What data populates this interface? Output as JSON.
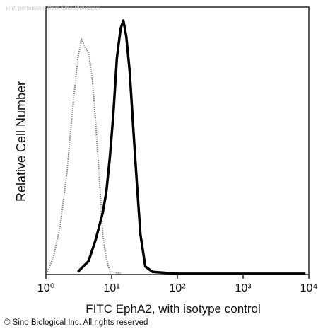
{
  "chart_data": {
    "type": "line",
    "watermark": "with permission from Sino Biological",
    "xlabel": "FITC EphA2, with isotype control",
    "ylabel": "Relative Cell Number",
    "footer": "© Sino Biological Inc. All rights reserved",
    "xscale": "log",
    "xlim": [
      1,
      10000
    ],
    "ylim": [
      0,
      100
    ],
    "xticks": [
      {
        "value": 1,
        "label": "10⁰"
      },
      {
        "value": 10,
        "label": "10¹"
      },
      {
        "value": 100,
        "label": "10²"
      },
      {
        "value": 1000,
        "label": "10³"
      },
      {
        "value": 10000,
        "label": "10⁴"
      }
    ],
    "series": [
      {
        "color": "#888888",
        "style": "dotted",
        "x": [
          1.05,
          1.28,
          1.65,
          2.1,
          2.4,
          2.7,
          3.06,
          3.47,
          3.93,
          4.45,
          5.05,
          5.7,
          6.5,
          7.3,
          8.3,
          9.4,
          13.7
        ],
        "values": [
          1,
          6,
          18,
          39,
          55,
          68,
          81,
          88,
          85,
          83,
          74,
          57,
          36,
          15,
          6,
          1,
          0.5
        ]
      },
      {
        "color": "#000000",
        "style": "solid",
        "x": [
          3.06,
          4.45,
          5.7,
          7.3,
          8.3,
          9.4,
          10.6,
          12.0,
          13.7,
          15.1,
          16.7,
          18.8,
          21.3,
          24.2,
          27.4,
          32.5,
          41.8,
          100,
          8900
        ],
        "values": [
          1,
          5,
          13,
          23,
          31,
          44,
          60,
          81,
          92,
          95,
          89,
          76,
          55,
          34,
          15,
          3,
          1,
          0.3,
          0.3
        ]
      }
    ]
  }
}
